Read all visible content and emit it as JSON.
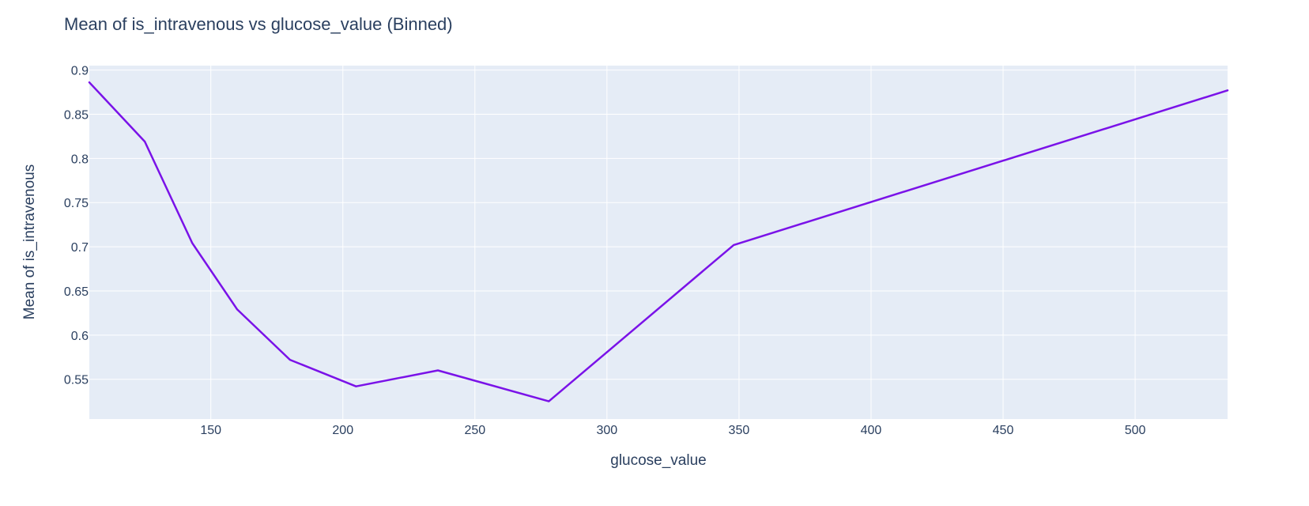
{
  "chart_data": {
    "type": "line",
    "title": "Mean of is_intravenous vs glucose_value (Binned)",
    "xlabel": "glucose_value",
    "ylabel": "Mean of is_intravenous",
    "xlim": [
      104,
      535
    ],
    "ylim": [
      0.505,
      0.905
    ],
    "x_ticks": [
      150,
      200,
      250,
      300,
      350,
      400,
      450,
      500
    ],
    "y_ticks": [
      0.55,
      0.6,
      0.65,
      0.7,
      0.75,
      0.8,
      0.85,
      0.9
    ],
    "x_tick_labels": [
      "150",
      "200",
      "250",
      "300",
      "350",
      "400",
      "450",
      "500"
    ],
    "y_tick_labels": [
      "0.55",
      "0.6",
      "0.65",
      "0.7",
      "0.75",
      "0.8",
      "0.85",
      "0.9"
    ],
    "grid": true,
    "legend": "none",
    "colors": {
      "line": "#7a12e8",
      "plot_background": "#e5ecf6",
      "grid": "#ffffff",
      "text": "#2a3f5f"
    },
    "series": [
      {
        "x": [
          104,
          125,
          143,
          160,
          180,
          205,
          236,
          278,
          348,
          535
        ],
        "y": [
          0.886,
          0.819,
          0.704,
          0.629,
          0.572,
          0.542,
          0.56,
          0.525,
          0.702,
          0.877
        ]
      }
    ]
  }
}
